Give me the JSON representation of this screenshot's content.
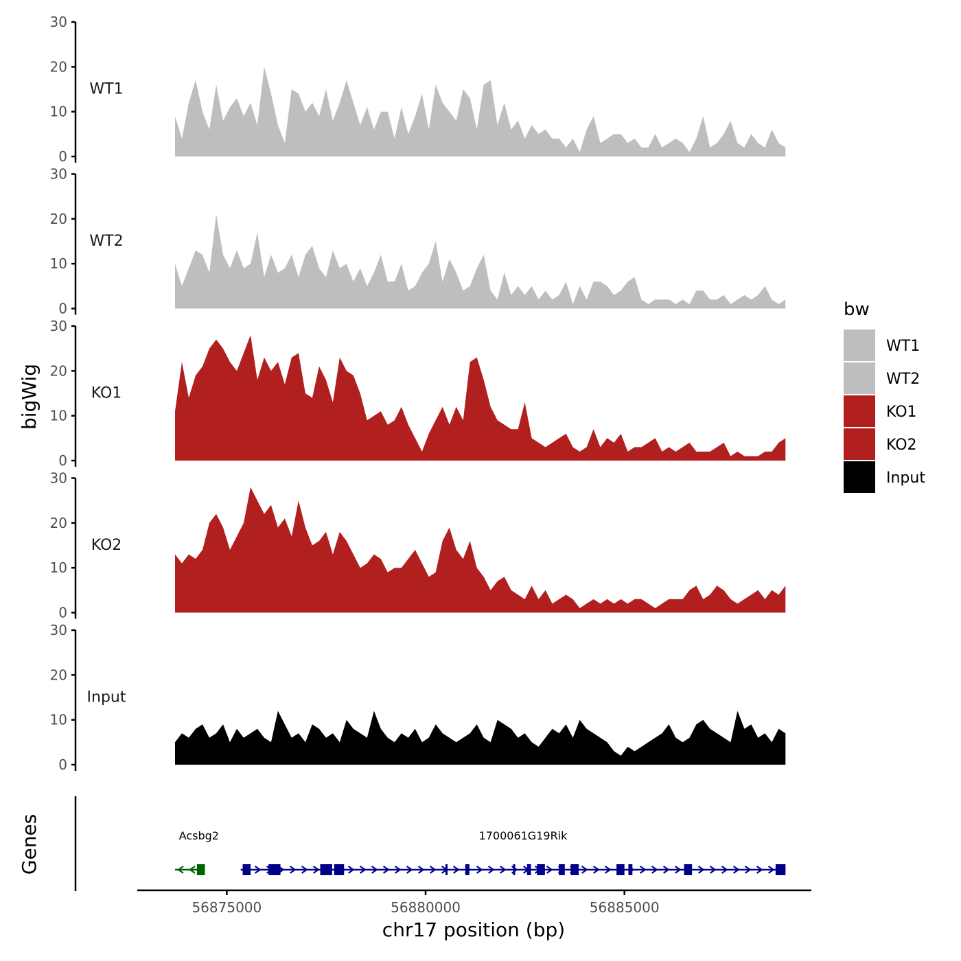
{
  "chart_data": {
    "type": "area",
    "ylabel": "bigWig",
    "xlabel": "chr17 position (bp)",
    "ylim": [
      0,
      30
    ],
    "yticks": [
      "0",
      "10",
      "20",
      "30"
    ],
    "xlim": [
      56872750,
      56889700
    ],
    "xticks": [
      {
        "value": 56875000,
        "label": "56875000"
      },
      {
        "value": 56880000,
        "label": "56880000"
      },
      {
        "value": 56885000,
        "label": "56885000"
      }
    ],
    "data_range": [
      56873700,
      56889050
    ],
    "tracks": [
      {
        "name": "WT1",
        "color": "#bebebe",
        "values": [
          9,
          4,
          12,
          17,
          10,
          6,
          16,
          8,
          11,
          13,
          9,
          12,
          7,
          20,
          14,
          7,
          3,
          15,
          14,
          10,
          12,
          9,
          15,
          8,
          12,
          17,
          12,
          7,
          11,
          6,
          10,
          10,
          4,
          11,
          5,
          9,
          14,
          6,
          16,
          12,
          10,
          8,
          15,
          13,
          6,
          16,
          17,
          7,
          12,
          6,
          8,
          4,
          7,
          5,
          6,
          4,
          4,
          2,
          4,
          1,
          6,
          9,
          3,
          4,
          5,
          5,
          3,
          4,
          2,
          2,
          5,
          2,
          3,
          4,
          3,
          1,
          4,
          9,
          2,
          3,
          5,
          8,
          3,
          2,
          5,
          3,
          2,
          6,
          3,
          2
        ]
      },
      {
        "name": "WT2",
        "color": "#bebebe",
        "values": [
          10,
          5,
          9,
          13,
          12,
          8,
          21,
          12,
          9,
          13,
          9,
          10,
          17,
          7,
          12,
          8,
          9,
          12,
          7,
          12,
          14,
          9,
          7,
          13,
          9,
          10,
          6,
          9,
          5,
          8,
          12,
          6,
          6,
          10,
          4,
          5,
          8,
          10,
          15,
          6,
          11,
          8,
          4,
          5,
          9,
          12,
          4,
          2,
          8,
          3,
          5,
          3,
          5,
          2,
          4,
          2,
          3,
          6,
          1,
          5,
          2,
          6,
          6,
          5,
          3,
          4,
          6,
          7,
          2,
          1,
          2,
          2,
          2,
          1,
          2,
          1,
          4,
          4,
          2,
          2,
          3,
          1,
          2,
          3,
          2,
          3,
          5,
          2,
          1,
          2
        ]
      },
      {
        "name": "KO1",
        "color": "#b21f1f",
        "values": [
          11,
          22,
          14,
          19,
          21,
          25,
          27,
          25,
          22,
          20,
          24,
          28,
          18,
          23,
          20,
          22,
          17,
          23,
          24,
          15,
          14,
          21,
          18,
          13,
          23,
          20,
          19,
          15,
          9,
          10,
          11,
          8,
          9,
          12,
          8,
          5,
          2,
          6,
          9,
          12,
          8,
          12,
          9,
          22,
          23,
          18,
          12,
          9,
          8,
          7,
          7,
          13,
          5,
          4,
          3,
          4,
          5,
          6,
          3,
          2,
          3,
          7,
          3,
          5,
          4,
          6,
          2,
          3,
          3,
          4,
          5,
          2,
          3,
          2,
          3,
          4,
          2,
          2,
          2,
          3,
          4,
          1,
          2,
          1,
          1,
          1,
          2,
          2,
          4,
          5
        ]
      },
      {
        "name": "KO2",
        "color": "#b21f1f",
        "values": [
          13,
          11,
          13,
          12,
          14,
          20,
          22,
          19,
          14,
          17,
          20,
          28,
          25,
          22,
          24,
          19,
          21,
          17,
          25,
          19,
          15,
          16,
          18,
          13,
          18,
          16,
          13,
          10,
          11,
          13,
          12,
          9,
          10,
          10,
          12,
          14,
          11,
          8,
          9,
          16,
          19,
          14,
          12,
          16,
          10,
          8,
          5,
          7,
          8,
          5,
          4,
          3,
          6,
          3,
          5,
          2,
          3,
          4,
          3,
          1,
          2,
          3,
          2,
          3,
          2,
          3,
          2,
          3,
          3,
          2,
          1,
          2,
          3,
          3,
          3,
          5,
          6,
          3,
          4,
          6,
          5,
          3,
          2,
          3,
          4,
          5,
          3,
          5,
          4,
          6
        ]
      },
      {
        "name": "Input",
        "color": "#000000",
        "values": [
          5,
          7,
          6,
          8,
          9,
          6,
          7,
          9,
          5,
          8,
          6,
          7,
          8,
          6,
          5,
          12,
          9,
          6,
          7,
          5,
          9,
          8,
          6,
          7,
          5,
          10,
          8,
          7,
          6,
          12,
          8,
          6,
          5,
          7,
          6,
          8,
          5,
          6,
          9,
          7,
          6,
          5,
          6,
          7,
          9,
          6,
          5,
          10,
          9,
          8,
          6,
          7,
          5,
          4,
          6,
          8,
          7,
          9,
          6,
          10,
          8,
          7,
          6,
          5,
          3,
          2,
          4,
          3,
          4,
          5,
          6,
          7,
          9,
          6,
          5,
          6,
          9,
          10,
          8,
          7,
          6,
          5,
          12,
          8,
          9,
          6,
          7,
          5,
          8,
          7
        ]
      },
      {
        "name": "Genes",
        "color": "#000000",
        "values": []
      }
    ],
    "legend": {
      "title": "bw",
      "entries": [
        {
          "label": "WT1",
          "color": "#bebebe"
        },
        {
          "label": "WT2",
          "color": "#bebebe"
        },
        {
          "label": "KO1",
          "color": "#b21f1f"
        },
        {
          "label": "KO2",
          "color": "#b21f1f"
        },
        {
          "label": "Input",
          "color": "#000000"
        }
      ]
    },
    "genes": [
      {
        "name": "Acsbg2",
        "strand": "-",
        "color": "#006400",
        "start": 56873700,
        "end": 56874450,
        "exons": [
          [
            56874250,
            56874450
          ]
        ]
      },
      {
        "name": "1700061G19Rik",
        "strand": "+",
        "color": "#00008b",
        "start": 56875350,
        "end": 56889050,
        "exons": [
          [
            56875400,
            56875600
          ],
          [
            56876050,
            56876350
          ],
          [
            56877350,
            56877650
          ],
          [
            56877700,
            56877950
          ],
          [
            56880500,
            56880550
          ],
          [
            56881000,
            56881100
          ],
          [
            56882200,
            56882250
          ],
          [
            56882550,
            56882650
          ],
          [
            56882800,
            56883000
          ],
          [
            56883350,
            56883500
          ],
          [
            56883650,
            56883850
          ],
          [
            56884800,
            56885000
          ],
          [
            56885100,
            56885200
          ],
          [
            56886500,
            56886700
          ],
          [
            56888800,
            56889050
          ]
        ]
      }
    ]
  }
}
